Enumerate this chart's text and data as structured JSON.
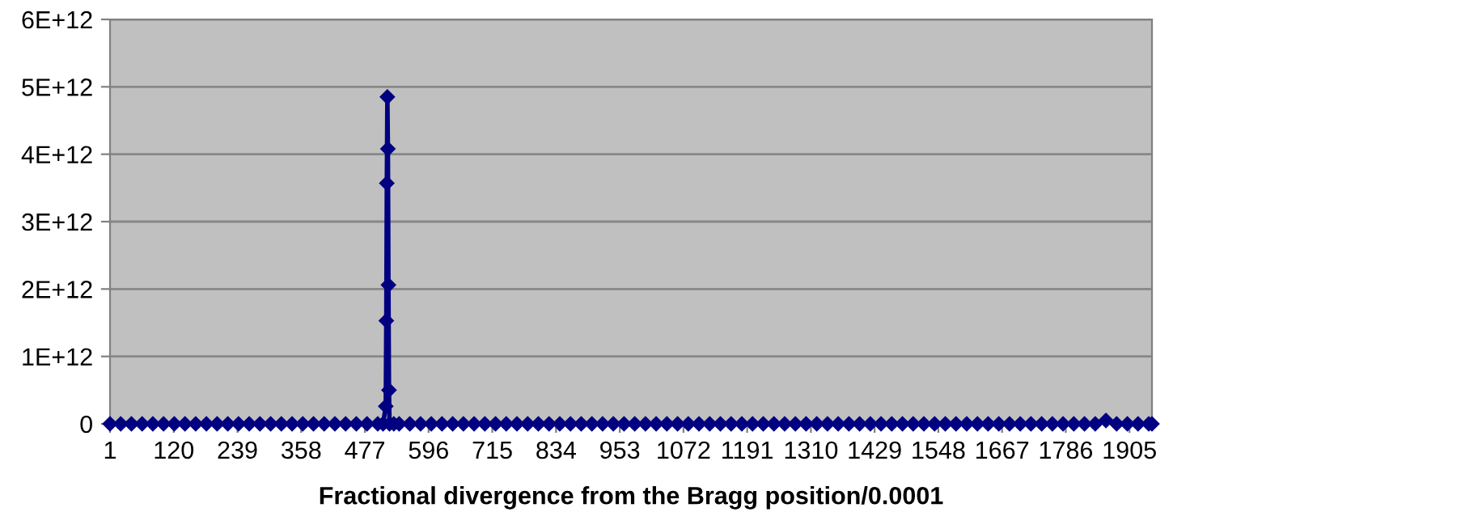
{
  "chart_data": {
    "type": "line",
    "xlabel": "Fractional divergence from the Bragg position/0.0001",
    "x": [
      1,
      21,
      41,
      61,
      81,
      101,
      121,
      141,
      161,
      181,
      201,
      221,
      241,
      261,
      281,
      301,
      321,
      341,
      361,
      381,
      401,
      421,
      441,
      461,
      481,
      501,
      511,
      516,
      517,
      518,
      519,
      520,
      521,
      522,
      523,
      531,
      541,
      561,
      581,
      601,
      621,
      641,
      661,
      681,
      701,
      721,
      741,
      761,
      781,
      801,
      821,
      841,
      861,
      881,
      901,
      921,
      941,
      961,
      981,
      1001,
      1021,
      1041,
      1061,
      1081,
      1101,
      1121,
      1141,
      1161,
      1181,
      1201,
      1221,
      1241,
      1261,
      1281,
      1301,
      1321,
      1341,
      1361,
      1381,
      1401,
      1421,
      1441,
      1461,
      1481,
      1501,
      1521,
      1541,
      1561,
      1581,
      1601,
      1621,
      1641,
      1661,
      1681,
      1701,
      1721,
      1741,
      1761,
      1781,
      1801,
      1821,
      1841,
      1861,
      1881,
      1901,
      1921,
      1941,
      1947
    ],
    "series": [
      {
        "color": "#000080",
        "values": [
          0,
          0,
          0,
          0,
          0,
          0,
          0,
          0,
          0,
          0,
          0,
          0,
          0,
          0,
          0,
          0,
          0,
          0,
          0,
          0,
          0,
          0,
          0,
          0,
          0,
          0,
          0,
          260000000000.0,
          1530000000000.0,
          3570000000000.0,
          4850000000000.0,
          4080000000000.0,
          2060000000000.0,
          500000000000.0,
          0,
          0,
          0,
          0,
          0,
          0,
          0,
          0,
          0,
          0,
          0,
          0,
          0,
          0,
          0,
          0,
          0,
          0,
          0,
          0,
          0,
          0,
          0,
          0,
          0,
          0,
          0,
          0,
          0,
          0,
          0,
          0,
          0,
          0,
          0,
          0,
          0,
          0,
          0,
          0,
          0,
          0,
          0,
          0,
          0,
          0,
          0,
          0,
          0,
          0,
          0,
          0,
          0,
          0,
          0,
          0,
          0,
          0,
          0,
          0,
          0,
          0,
          0,
          0,
          0,
          0,
          0,
          0,
          50000000000.0,
          0,
          0,
          0,
          0,
          0
        ]
      }
    ],
    "xlim": [
      1,
      1947
    ],
    "xticks": [
      1,
      120,
      239,
      358,
      477,
      596,
      715,
      834,
      953,
      1072,
      1191,
      1310,
      1429,
      1548,
      1667,
      1786,
      1905
    ],
    "ylim": [
      0,
      6000000000000.0
    ],
    "yticks": [
      0,
      {
        "value": 1000000000000.0,
        "label": "1E+12"
      },
      {
        "value": 2000000000000.0,
        "label": "2E+12"
      },
      {
        "value": 3000000000000.0,
        "label": "3E+12"
      },
      {
        "value": 4000000000000.0,
        "label": "4E+12"
      },
      {
        "value": 5000000000000.0,
        "label": "5E+12"
      },
      {
        "value": 6000000000000.0,
        "label": "6E+12"
      }
    ],
    "grid": "y",
    "marker": "diamond",
    "line_style": "solid",
    "legend": false
  }
}
